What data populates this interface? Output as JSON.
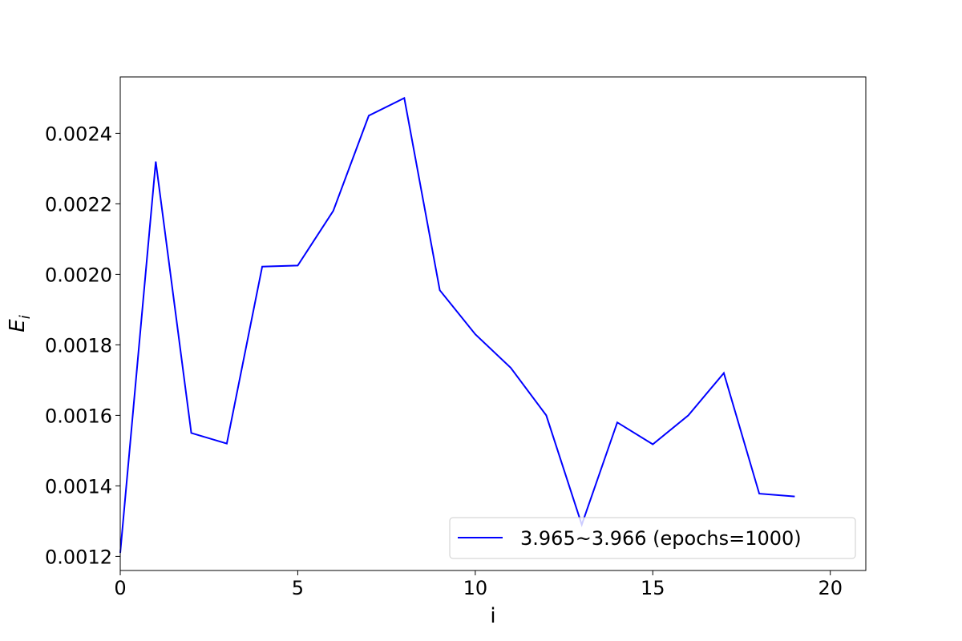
{
  "chart_data": {
    "type": "line",
    "title": "",
    "xlabel": "i",
    "ylabel": "E",
    "ylabel_subscript": "i",
    "xlim": [
      0,
      21
    ],
    "ylim": [
      0.00116,
      0.00256
    ],
    "xticks": [
      0,
      5,
      10,
      15,
      20
    ],
    "xtick_labels": [
      "0",
      "5",
      "10",
      "15",
      "20"
    ],
    "yticks": [
      0.0012,
      0.0014,
      0.0016,
      0.0018,
      0.002,
      0.0022,
      0.0024
    ],
    "ytick_labels": [
      "0.0012",
      "0.0014",
      "0.0016",
      "0.0018",
      "0.0020",
      "0.0022",
      "0.0024"
    ],
    "grid": false,
    "legend_position": "lower-right",
    "series": [
      {
        "name": "3.965~3.966 (epochs=1000)",
        "color": "#0000ff",
        "x": [
          0,
          1,
          2,
          3,
          4,
          5,
          6,
          7,
          8,
          9,
          10,
          11,
          12,
          13,
          14,
          15,
          16,
          17,
          18,
          19
        ],
        "values": [
          0.00121,
          0.00232,
          0.00155,
          0.00152,
          0.002022,
          0.002025,
          0.00218,
          0.00245,
          0.0025,
          0.001955,
          0.00183,
          0.001735,
          0.0016,
          0.00129,
          0.00158,
          0.001518,
          0.0016,
          0.00172,
          0.001378,
          0.00137
        ]
      }
    ]
  }
}
